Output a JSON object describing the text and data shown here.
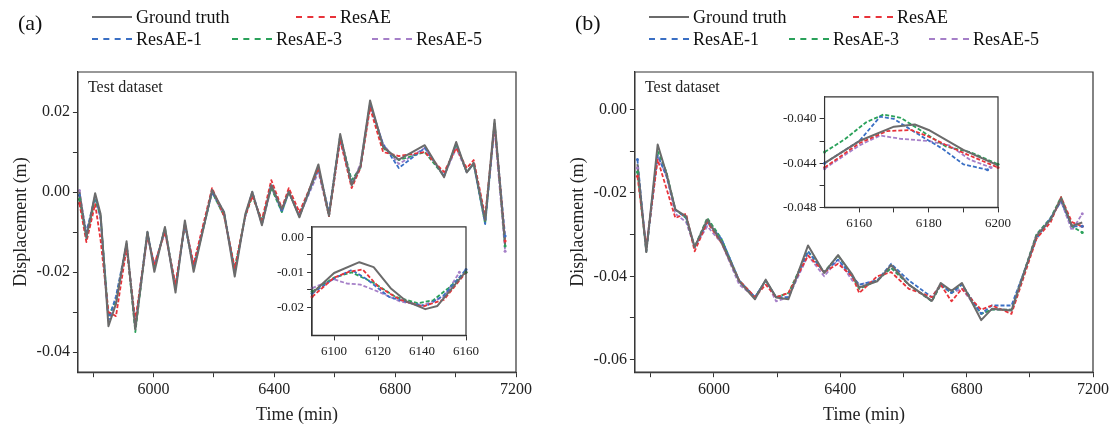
{
  "chart_data": [
    {
      "type": "line",
      "title": "(a)",
      "xlabel": "Time (min)",
      "ylabel": "Displacement (m)",
      "annotations": [
        "Test dataset"
      ],
      "legend": "top",
      "grid": false,
      "line_style": "dashed",
      "xlim": [
        5750,
        7200
      ],
      "ylim": [
        -0.045,
        0.03
      ],
      "xticks": [
        {
          "value": 5800,
          "label": null
        },
        6000,
        {
          "value": 6200,
          "label": null
        },
        6400,
        {
          "value": 6600,
          "label": null
        },
        6800,
        {
          "value": 7000,
          "label": null
        },
        7200
      ],
      "yticks": [
        -0.04,
        {
          "value": -0.03,
          "label": null
        },
        -0.02,
        {
          "value": -0.01,
          "label": null
        },
        {
          "value": 0,
          "label": "0.00"
        },
        {
          "value": 0.01,
          "label": null
        },
        0.02
      ],
      "x": [
        5755,
        5778,
        5807,
        5825,
        5851,
        5876,
        5911,
        5940,
        5980,
        6003,
        6038,
        6073,
        6104,
        6133,
        6194,
        6234,
        6269,
        6304,
        6327,
        6359,
        6390,
        6425,
        6448,
        6483,
        6546,
        6581,
        6618,
        6656,
        6685,
        6717,
        6760,
        6812,
        6898,
        6962,
        7002,
        7037,
        7060,
        7098,
        7129,
        7164
      ],
      "series": [
        {
          "name": "Ground truth",
          "color": "#6b6b6b",
          "line_style": "solid",
          "values": [
            0.0,
            -0.0115,
            -0.0003,
            -0.0055,
            -0.0335,
            -0.0279,
            -0.0123,
            -0.0343,
            -0.0099,
            -0.0199,
            -0.0087,
            -0.0251,
            -0.0071,
            -0.0199,
            0.0005,
            -0.0051,
            -0.0211,
            -0.0055,
            0.0001,
            -0.0083,
            0.0017,
            -0.0043,
            0.0001,
            -0.0063,
            0.0069,
            -0.0059,
            0.0145,
            0.0017,
            0.0065,
            0.0229,
            0.0113,
            0.0081,
            0.0117,
            0.0037,
            0.0125,
            0.0049,
            0.0073,
            -0.0071,
            0.0181,
            -0.0131
          ]
        },
        {
          "name": "ResAE",
          "color": "#e8333a",
          "values": [
            -0.0028,
            -0.0125,
            -0.003,
            -0.012,
            -0.03,
            -0.031,
            -0.014,
            -0.032,
            -0.011,
            -0.018,
            -0.01,
            -0.023,
            -0.008,
            -0.018,
            0.001,
            -0.006,
            -0.019,
            -0.006,
            -0.001,
            -0.007,
            0.003,
            -0.004,
            0.001,
            -0.005,
            0.006,
            -0.006,
            0.013,
            0.001,
            0.006,
            0.021,
            0.01,
            0.009,
            0.01,
            0.005,
            0.011,
            0.006,
            0.008,
            -0.006,
            0.017,
            -0.0122
          ]
        },
        {
          "name": "ResAE-1",
          "color": "#3a6fc4",
          "values": [
            -0.0008,
            -0.01,
            -0.001,
            -0.006,
            -0.032,
            -0.026,
            -0.013,
            -0.033,
            -0.01,
            -0.019,
            -0.009,
            -0.024,
            -0.008,
            -0.019,
            0.0,
            -0.005,
            -0.02,
            -0.006,
            0.0,
            -0.008,
            0.002,
            -0.005,
            0.0,
            -0.006,
            0.006,
            -0.005,
            0.014,
            0.002,
            0.006,
            0.022,
            0.012,
            0.006,
            0.011,
            0.004,
            0.012,
            0.005,
            0.007,
            -0.008,
            0.017,
            -0.011
          ]
        },
        {
          "name": "ResAE-3",
          "color": "#2aa15a",
          "values": [
            -0.0018,
            -0.011,
            -0.002,
            -0.006,
            -0.031,
            -0.027,
            -0.013,
            -0.035,
            -0.01,
            -0.019,
            -0.009,
            -0.024,
            -0.008,
            -0.019,
            0.0,
            -0.006,
            -0.019,
            -0.006,
            -0.001,
            -0.007,
            0.001,
            -0.005,
            0.0,
            -0.006,
            0.006,
            -0.006,
            0.014,
            0.003,
            0.006,
            0.022,
            0.011,
            0.008,
            0.01,
            0.004,
            0.012,
            0.005,
            0.007,
            -0.008,
            0.0175,
            -0.0135
          ]
        },
        {
          "name": "ResAE-5",
          "color": "#a57fc8",
          "values": [
            0.0004,
            -0.011,
            -0.001,
            -0.007,
            -0.032,
            -0.028,
            -0.013,
            -0.034,
            -0.011,
            -0.018,
            -0.01,
            -0.024,
            -0.008,
            -0.018,
            0.0,
            -0.006,
            -0.02,
            -0.006,
            0.0,
            -0.008,
            0.001,
            -0.004,
            0.0,
            -0.006,
            0.005,
            -0.006,
            0.013,
            0.002,
            0.007,
            0.022,
            0.012,
            0.007,
            0.011,
            0.004,
            0.011,
            0.005,
            0.007,
            -0.007,
            0.016,
            -0.0148
          ]
        }
      ]
    },
    {
      "type": "line",
      "title": "(b)",
      "xlabel": "Time (min)",
      "ylabel": "Displacement (m)",
      "annotations": [
        "Test dataset"
      ],
      "legend": "top",
      "grid": false,
      "line_style": "dashed",
      "xlim": [
        5750,
        7200
      ],
      "ylim": [
        -0.063,
        0.009
      ],
      "xticks": [
        {
          "value": 5800,
          "label": null
        },
        6000,
        {
          "value": 6200,
          "label": null
        },
        6400,
        {
          "value": 6600,
          "label": null
        },
        6800,
        {
          "value": 7000,
          "label": null
        },
        7200
      ],
      "yticks": [
        -0.06,
        {
          "value": -0.05,
          "label": null
        },
        -0.04,
        {
          "value": -0.03,
          "label": null
        },
        -0.02,
        {
          "value": -0.01,
          "label": null
        },
        {
          "value": 0,
          "label": "0.00"
        }
      ],
      "x": [
        5758,
        5786,
        5822,
        5850,
        5878,
        5912,
        5939,
        5979,
        6024,
        6080,
        6130,
        6164,
        6197,
        6236,
        6298,
        6349,
        6393,
        6438,
        6460,
        6517,
        6561,
        6617,
        6690,
        6718,
        6752,
        6785,
        6846,
        6880,
        6942,
        7021,
        7066,
        7099,
        7133,
        7166
      ],
      "series": [
        {
          "name": "Ground truth",
          "color": "#6b6b6b",
          "line_style": "solid",
          "values": [
            -0.0131,
            -0.0342,
            -0.0084,
            -0.0154,
            -0.024,
            -0.0256,
            -0.033,
            -0.0264,
            -0.0318,
            -0.0412,
            -0.0455,
            -0.0408,
            -0.0451,
            -0.0455,
            -0.0326,
            -0.0392,
            -0.0349,
            -0.0396,
            -0.0427,
            -0.0412,
            -0.0373,
            -0.042,
            -0.0459,
            -0.0416,
            -0.0435,
            -0.0416,
            -0.0505,
            -0.0478,
            -0.0482,
            -0.0303,
            -0.0264,
            -0.0213,
            -0.0279,
            -0.0271
          ]
        },
        {
          "name": "ResAE",
          "color": "#e8333a",
          "values": [
            -0.016,
            -0.033,
            -0.012,
            -0.019,
            -0.026,
            -0.025,
            -0.034,
            -0.027,
            -0.032,
            -0.041,
            -0.045,
            -0.042,
            -0.045,
            -0.044,
            -0.035,
            -0.039,
            -0.037,
            -0.04,
            -0.044,
            -0.04,
            -0.039,
            -0.043,
            -0.045,
            -0.042,
            -0.046,
            -0.043,
            -0.048,
            -0.047,
            -0.049,
            -0.031,
            -0.027,
            -0.021,
            -0.027,
            -0.028
          ]
        },
        {
          "name": "ResAE-1",
          "color": "#3a6fc4",
          "values": [
            -0.012,
            -0.034,
            -0.011,
            -0.016,
            -0.024,
            -0.026,
            -0.033,
            -0.027,
            -0.031,
            -0.041,
            -0.045,
            -0.041,
            -0.045,
            -0.045,
            -0.034,
            -0.039,
            -0.036,
            -0.04,
            -0.042,
            -0.041,
            -0.037,
            -0.041,
            -0.045,
            -0.042,
            -0.044,
            -0.042,
            -0.049,
            -0.047,
            -0.047,
            -0.031,
            -0.026,
            -0.022,
            -0.028,
            -0.028
          ]
        },
        {
          "name": "ResAE-3",
          "color": "#2aa15a",
          "values": [
            -0.015,
            -0.034,
            -0.01,
            -0.015,
            -0.024,
            -0.026,
            -0.033,
            -0.026,
            -0.031,
            -0.041,
            -0.045,
            -0.041,
            -0.045,
            -0.044,
            -0.034,
            -0.039,
            -0.035,
            -0.04,
            -0.043,
            -0.041,
            -0.038,
            -0.042,
            -0.046,
            -0.042,
            -0.044,
            -0.042,
            -0.049,
            -0.048,
            -0.048,
            -0.03,
            -0.026,
            -0.021,
            -0.028,
            -0.0295
          ]
        },
        {
          "name": "ResAE-5",
          "color": "#a57fc8",
          "values": [
            -0.014,
            -0.033,
            -0.011,
            -0.016,
            -0.025,
            -0.027,
            -0.033,
            -0.028,
            -0.032,
            -0.042,
            -0.045,
            -0.041,
            -0.046,
            -0.045,
            -0.035,
            -0.04,
            -0.036,
            -0.041,
            -0.042,
            -0.041,
            -0.038,
            -0.042,
            -0.046,
            -0.042,
            -0.044,
            -0.043,
            -0.049,
            -0.048,
            -0.048,
            -0.03,
            -0.026,
            -0.022,
            -0.029,
            -0.025
          ]
        }
      ]
    },
    {
      "type": "line",
      "grid": false,
      "line_style": "dashed",
      "xlim": [
        6090,
        6160
      ],
      "ylim": [
        -0.028,
        0.003
      ],
      "xticks": [
        6100,
        6120,
        6140,
        6160
      ],
      "yticks": [
        -0.02,
        {
          "value": -0.015,
          "label": null
        },
        -0.01,
        {
          "value": -0.005,
          "label": null
        },
        {
          "value": 0,
          "label": "0.00"
        }
      ],
      "series": [
        {
          "color": "#6b6b6b",
          "line_style": "solid",
          "x": [
            6090,
            6100,
            6111.5,
            6118,
            6126,
            6133,
            6141.5,
            6147,
            6160
          ],
          "values": [
            -0.016,
            -0.0102,
            -0.0071,
            -0.0085,
            -0.0147,
            -0.0183,
            -0.0205,
            -0.0196,
            -0.0097
          ]
        },
        {
          "color": "#e8333a",
          "x": [
            6090,
            6100,
            6107,
            6113,
            6120,
            6130,
            6140,
            6150,
            6160
          ],
          "values": [
            -0.017,
            -0.0115,
            -0.0098,
            -0.0092,
            -0.014,
            -0.0178,
            -0.0198,
            -0.0178,
            -0.01
          ]
        },
        {
          "color": "#3a6fc4",
          "x": [
            6090,
            6100,
            6108,
            6115,
            6125,
            6135,
            6142,
            6150,
            6160
          ],
          "values": [
            -0.016,
            -0.0118,
            -0.0093,
            -0.012,
            -0.017,
            -0.0188,
            -0.0196,
            -0.0165,
            -0.0092
          ]
        },
        {
          "color": "#2aa15a",
          "x": [
            6090,
            6100,
            6108,
            6118,
            6128,
            6138,
            6145,
            6152,
            6160
          ],
          "values": [
            -0.0155,
            -0.0115,
            -0.01,
            -0.013,
            -0.017,
            -0.0188,
            -0.018,
            -0.0145,
            -0.01
          ]
        },
        {
          "color": "#a57fc8",
          "x": [
            6090,
            6100,
            6106,
            6112,
            6120,
            6130,
            6140,
            6150,
            6157
          ],
          "values": [
            -0.0145,
            -0.012,
            -0.0132,
            -0.0135,
            -0.0155,
            -0.0183,
            -0.0195,
            -0.017,
            -0.01
          ]
        }
      ]
    },
    {
      "type": "line",
      "grid": false,
      "line_style": "dashed",
      "xlim": [
        6150,
        6200
      ],
      "ylim": [
        -0.048,
        -0.038
      ],
      "xticks": [
        6160,
        {
          "value": 6170,
          "label": null
        },
        6180,
        {
          "value": 6190,
          "label": null
        },
        6200
      ],
      "yticks": [
        -0.048,
        {
          "value": -0.046,
          "label": null
        },
        -0.044,
        {
          "value": -0.042,
          "label": null
        },
        {
          "value": -0.04,
          "label": "-0.040"
        }
      ],
      "series": [
        {
          "color": "#6b6b6b",
          "line_style": "solid",
          "x": [
            6150,
            6160,
            6170,
            6176,
            6180,
            6190,
            6200
          ],
          "values": [
            -0.044,
            -0.042,
            -0.0407,
            -0.0405,
            -0.041,
            -0.0428,
            -0.0442
          ]
        },
        {
          "color": "#e8333a",
          "x": [
            6150,
            6160,
            6168,
            6175,
            6180,
            6186,
            6191,
            6200
          ],
          "values": [
            -0.0444,
            -0.0422,
            -0.0411,
            -0.041,
            -0.0416,
            -0.0425,
            -0.0432,
            -0.0444
          ]
        },
        {
          "color": "#3a6fc4",
          "x": [
            6150,
            6160,
            6166,
            6170,
            6176,
            6184,
            6190,
            6197
          ],
          "values": [
            -0.044,
            -0.042,
            -0.0398,
            -0.04,
            -0.0412,
            -0.0427,
            -0.0441,
            -0.0446
          ]
        },
        {
          "color": "#2aa15a",
          "x": [
            6150,
            6156,
            6162,
            6167,
            6172,
            6180,
            6185,
            6192,
            6200
          ],
          "values": [
            -0.043,
            -0.0418,
            -0.0403,
            -0.0396,
            -0.0399,
            -0.0415,
            -0.0425,
            -0.043,
            -0.0441
          ]
        },
        {
          "color": "#a57fc8",
          "x": [
            6150,
            6160,
            6166,
            6172,
            6180,
            6186,
            6192,
            6198
          ],
          "values": [
            -0.0445,
            -0.0424,
            -0.0415,
            -0.0418,
            -0.042,
            -0.0424,
            -0.0437,
            -0.0444
          ]
        }
      ]
    }
  ]
}
